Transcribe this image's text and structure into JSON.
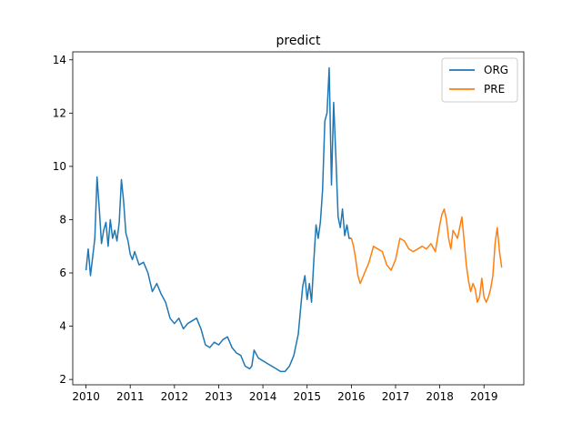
{
  "chart_data": {
    "type": "line",
    "title": "predict",
    "xlabel": "",
    "ylabel": "",
    "xlim": [
      2009.7,
      2019.9
    ],
    "ylim": [
      1.8,
      14.3
    ],
    "x_ticks": [
      2010,
      2011,
      2012,
      2013,
      2014,
      2015,
      2016,
      2017,
      2018,
      2019
    ],
    "x_tick_labels": [
      "2010",
      "2011",
      "2012",
      "2013",
      "2014",
      "2015",
      "2016",
      "2017",
      "2018",
      "2019"
    ],
    "y_ticks": [
      2,
      4,
      6,
      8,
      10,
      12,
      14
    ],
    "y_tick_labels": [
      "2",
      "4",
      "6",
      "8",
      "10",
      "12",
      "14"
    ],
    "grid": false,
    "legend_position": "top-right",
    "series": [
      {
        "name": "ORG",
        "color": "#1f77b4",
        "points": [
          [
            2010.0,
            6.1
          ],
          [
            2010.05,
            6.9
          ],
          [
            2010.1,
            5.9
          ],
          [
            2010.15,
            6.6
          ],
          [
            2010.2,
            7.3
          ],
          [
            2010.25,
            9.6
          ],
          [
            2010.3,
            8.4
          ],
          [
            2010.35,
            7.1
          ],
          [
            2010.4,
            7.6
          ],
          [
            2010.45,
            7.9
          ],
          [
            2010.5,
            7.0
          ],
          [
            2010.55,
            8.0
          ],
          [
            2010.6,
            7.3
          ],
          [
            2010.65,
            7.6
          ],
          [
            2010.7,
            7.2
          ],
          [
            2010.75,
            7.9
          ],
          [
            2010.8,
            9.5
          ],
          [
            2010.85,
            8.7
          ],
          [
            2010.9,
            7.5
          ],
          [
            2010.95,
            7.2
          ],
          [
            2011.0,
            6.7
          ],
          [
            2011.05,
            6.5
          ],
          [
            2011.1,
            6.8
          ],
          [
            2011.2,
            6.3
          ],
          [
            2011.3,
            6.4
          ],
          [
            2011.4,
            6.0
          ],
          [
            2011.5,
            5.3
          ],
          [
            2011.6,
            5.6
          ],
          [
            2011.7,
            5.2
          ],
          [
            2011.8,
            4.9
          ],
          [
            2011.9,
            4.3
          ],
          [
            2012.0,
            4.1
          ],
          [
            2012.1,
            4.3
          ],
          [
            2012.2,
            3.9
          ],
          [
            2012.3,
            4.1
          ],
          [
            2012.4,
            4.2
          ],
          [
            2012.5,
            4.3
          ],
          [
            2012.6,
            3.9
          ],
          [
            2012.7,
            3.3
          ],
          [
            2012.8,
            3.2
          ],
          [
            2012.9,
            3.4
          ],
          [
            2013.0,
            3.3
          ],
          [
            2013.1,
            3.5
          ],
          [
            2013.2,
            3.6
          ],
          [
            2013.3,
            3.2
          ],
          [
            2013.4,
            3.0
          ],
          [
            2013.5,
            2.9
          ],
          [
            2013.6,
            2.5
          ],
          [
            2013.7,
            2.4
          ],
          [
            2013.75,
            2.5
          ],
          [
            2013.8,
            3.1
          ],
          [
            2013.9,
            2.8
          ],
          [
            2014.0,
            2.7
          ],
          [
            2014.1,
            2.6
          ],
          [
            2014.2,
            2.5
          ],
          [
            2014.3,
            2.4
          ],
          [
            2014.4,
            2.3
          ],
          [
            2014.5,
            2.3
          ],
          [
            2014.6,
            2.5
          ],
          [
            2014.7,
            2.9
          ],
          [
            2014.8,
            3.7
          ],
          [
            2014.85,
            4.6
          ],
          [
            2014.9,
            5.5
          ],
          [
            2014.95,
            5.9
          ],
          [
            2015.0,
            5.0
          ],
          [
            2015.05,
            5.6
          ],
          [
            2015.1,
            4.9
          ],
          [
            2015.15,
            6.4
          ],
          [
            2015.2,
            7.8
          ],
          [
            2015.25,
            7.3
          ],
          [
            2015.3,
            7.9
          ],
          [
            2015.35,
            9.1
          ],
          [
            2015.4,
            11.7
          ],
          [
            2015.45,
            12.0
          ],
          [
            2015.5,
            13.7
          ],
          [
            2015.55,
            9.3
          ],
          [
            2015.6,
            12.4
          ],
          [
            2015.65,
            10.4
          ],
          [
            2015.7,
            8.1
          ],
          [
            2015.75,
            7.7
          ],
          [
            2015.8,
            8.4
          ],
          [
            2015.85,
            7.4
          ],
          [
            2015.9,
            7.8
          ],
          [
            2015.95,
            7.3
          ],
          [
            2016.0,
            7.3
          ]
        ]
      },
      {
        "name": "PRE",
        "color": "#ff7f0e",
        "points": [
          [
            2016.0,
            7.3
          ],
          [
            2016.05,
            7.0
          ],
          [
            2016.1,
            6.5
          ],
          [
            2016.15,
            5.9
          ],
          [
            2016.2,
            5.6
          ],
          [
            2016.3,
            6.0
          ],
          [
            2016.4,
            6.4
          ],
          [
            2016.5,
            7.0
          ],
          [
            2016.6,
            6.9
          ],
          [
            2016.7,
            6.8
          ],
          [
            2016.8,
            6.3
          ],
          [
            2016.9,
            6.1
          ],
          [
            2017.0,
            6.5
          ],
          [
            2017.1,
            7.3
          ],
          [
            2017.2,
            7.2
          ],
          [
            2017.3,
            6.9
          ],
          [
            2017.4,
            6.8
          ],
          [
            2017.5,
            6.9
          ],
          [
            2017.6,
            7.0
          ],
          [
            2017.7,
            6.9
          ],
          [
            2017.8,
            7.1
          ],
          [
            2017.9,
            6.8
          ],
          [
            2018.0,
            7.8
          ],
          [
            2018.05,
            8.2
          ],
          [
            2018.1,
            8.4
          ],
          [
            2018.15,
            8.0
          ],
          [
            2018.2,
            7.3
          ],
          [
            2018.25,
            6.9
          ],
          [
            2018.3,
            7.6
          ],
          [
            2018.4,
            7.3
          ],
          [
            2018.5,
            8.1
          ],
          [
            2018.55,
            7.2
          ],
          [
            2018.6,
            6.3
          ],
          [
            2018.65,
            5.7
          ],
          [
            2018.7,
            5.3
          ],
          [
            2018.75,
            5.6
          ],
          [
            2018.8,
            5.4
          ],
          [
            2018.85,
            4.9
          ],
          [
            2018.9,
            5.1
          ],
          [
            2018.95,
            5.8
          ],
          [
            2019.0,
            5.1
          ],
          [
            2019.05,
            4.9
          ],
          [
            2019.1,
            5.1
          ],
          [
            2019.15,
            5.4
          ],
          [
            2019.2,
            5.9
          ],
          [
            2019.25,
            7.1
          ],
          [
            2019.3,
            7.7
          ],
          [
            2019.35,
            6.8
          ],
          [
            2019.4,
            6.2
          ]
        ]
      }
    ]
  }
}
